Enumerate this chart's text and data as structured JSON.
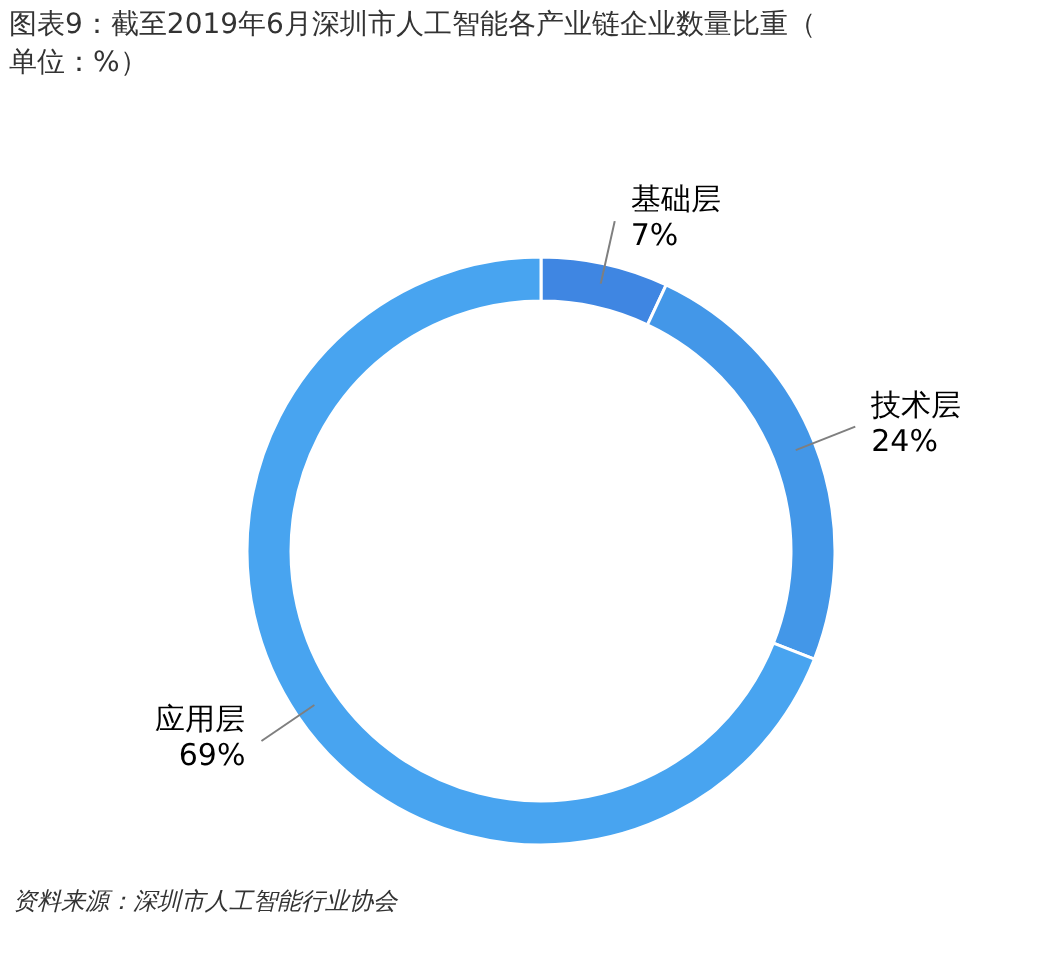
{
  "chart_data": {
    "type": "donut",
    "title": "图表9：截至2019年6月深圳市人工智能各产业链企业数量比重（单位：%）",
    "categories": [
      "基础层",
      "技术层",
      "应用层"
    ],
    "values": [
      7,
      24,
      69
    ],
    "value_labels": [
      "7%",
      "24%",
      "69%"
    ],
    "colors": [
      "#3f86e2",
      "#4397e8",
      "#48a4f0"
    ],
    "annotations": [
      "资料来源：深圳市人工智能行业协会"
    ]
  }
}
